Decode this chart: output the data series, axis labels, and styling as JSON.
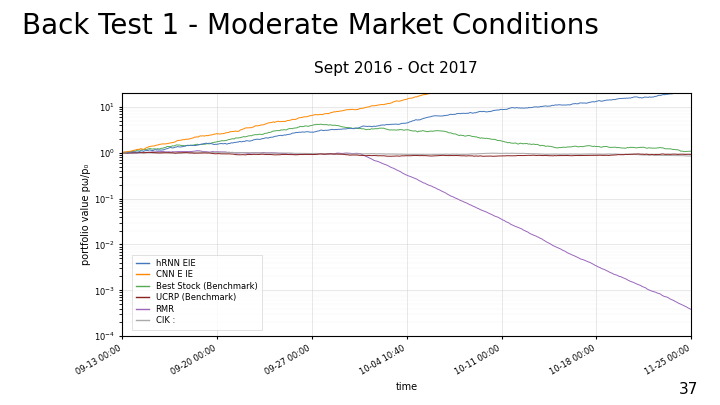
{
  "title": "Back Test 1 - Moderate Market Conditions",
  "subtitle": "Sept 2016 - Oct 2017",
  "xlabel": "time",
  "ylabel": "portfolio value pω/p₀",
  "page_number": "37",
  "legend_labels": [
    "hRNN EIE",
    "CNN E IE",
    "Best Stock (Benchmark)",
    "UCRP (Benchmark)",
    "RMR",
    "CIK :"
  ],
  "legend_colors": [
    "#4477bb",
    "#ff8800",
    "#55aa55",
    "#8b2222",
    "#9966bb",
    "#aaaaaa"
  ],
  "background_color": "#ffffff",
  "title_fontsize": 20,
  "subtitle_fontsize": 11,
  "axis_label_fontsize": 7,
  "tick_fontsize": 6,
  "legend_fontsize": 6,
  "date_ticks": [
    "09-13 00:00",
    "09-20 00:00",
    "09-27 00:00",
    "10-04 10:40",
    "10-11 00:00",
    "10-18 00:00",
    "11-25 00:00"
  ]
}
